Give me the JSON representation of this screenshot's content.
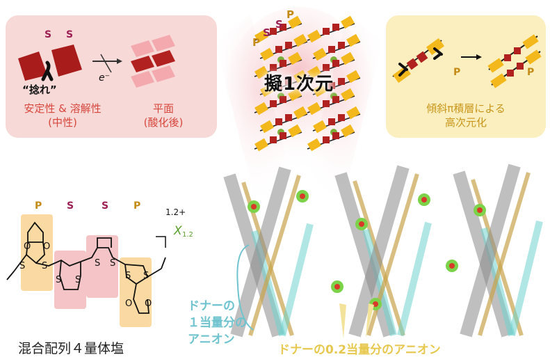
{
  "top_left": {
    "s_labels": [
      "S",
      "S"
    ],
    "twist_label": "“捻れ”",
    "electron": "e⁻",
    "caption_left_line1": "安定性 & 溶解性",
    "caption_left_line2": "(中性)",
    "caption_right_line1": "平面",
    "caption_right_line2": "(酸化後)"
  },
  "top_center": {
    "title": "擬1次元",
    "stack_labels": [
      "P",
      "S",
      "S",
      "P"
    ]
  },
  "top_right": {
    "p_labels": [
      "P",
      "P"
    ],
    "caption_line1": "傾斜π積層による",
    "caption_line2": "高次元化"
  },
  "molecule": {
    "header_labels": [
      "P",
      "S",
      "S",
      "P"
    ],
    "charge": "1.2+",
    "anion": "X",
    "anion_sub": "1.2",
    "atoms_s": [
      "S",
      "S",
      "S",
      "S",
      "S",
      "S",
      "S",
      "S"
    ],
    "atoms_o": [
      "O",
      "O",
      "O",
      "O"
    ],
    "caption": "混合配列４量体塩"
  },
  "crystal": {
    "label_line1": "ドナーの",
    "label_line2": "１当量分の",
    "label_line3": "アニオン",
    "bottom_label": "ドナーの0.2当量分のアニオン"
  },
  "colors": {
    "pink_panel": "#f7d9d8",
    "yellow_panel": "#fbefbf",
    "dark_red": "#b0211f",
    "gold": "#f3b81c",
    "green": "#7cae3a",
    "cyan": "#6fc3cf"
  }
}
